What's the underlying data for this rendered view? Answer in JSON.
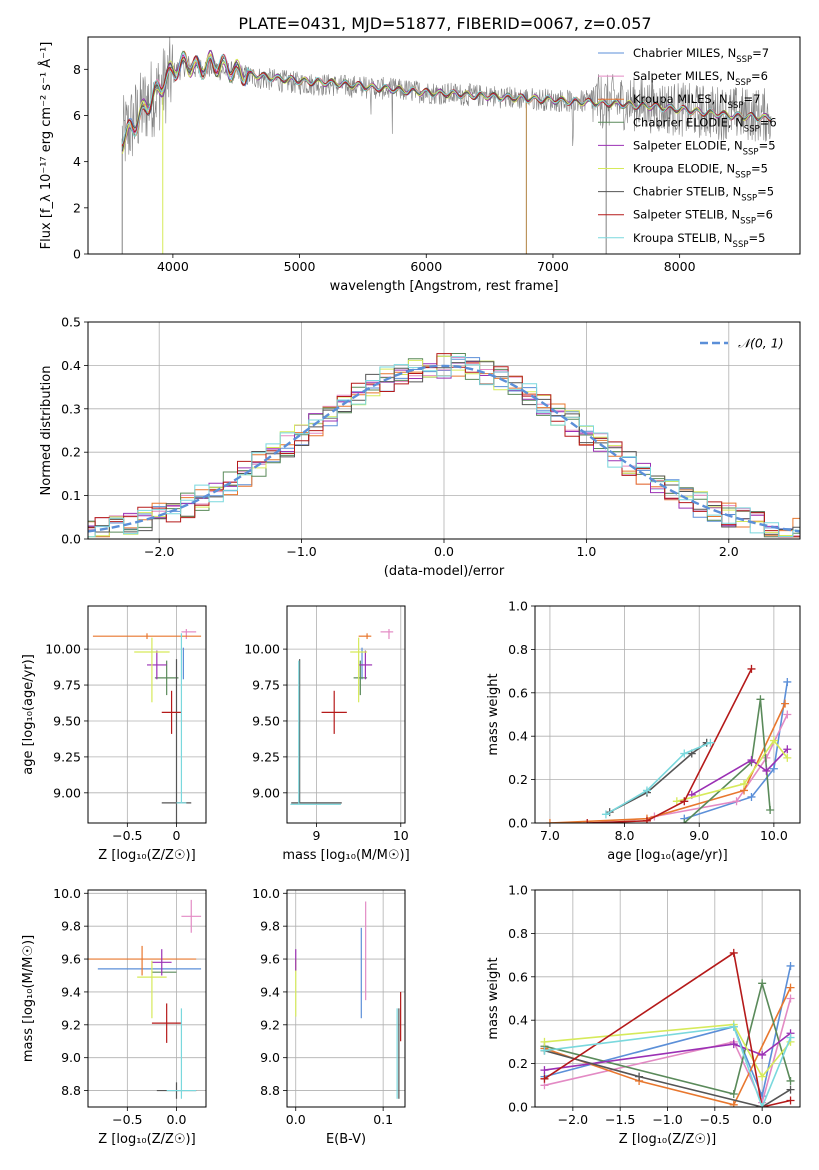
{
  "figure": {
    "suptitle": "PLATE=0431, MJD=51877, FIBERID=0067, z=0.057"
  },
  "colors": {
    "Chabrier MILES": "#5b8fd8",
    "Salpeter MILES": "#e38ac4",
    "Kroupa MILES": "#e8772e",
    "Chabrier ELODIE": "#5a8a5a",
    "Salpeter ELODIE": "#9b30b4",
    "Kroupa ELODIE": "#d6ea5a",
    "Chabrier STELIB": "#555555",
    "Salpeter STELIB": "#b51a1a",
    "Kroupa STELIB": "#7ad8dd",
    "data": "#808080",
    "normal": "#5b8fd8"
  },
  "chart_data": [
    {
      "id": "spectrum",
      "type": "line",
      "title": "",
      "xlabel": "wavelength [Angstrom, rest frame]",
      "ylabel": "Flux [f_λ 10⁻¹⁷ erg cm⁻² s⁻¹ Å⁻¹]",
      "xlim": [
        3330,
        8950
      ],
      "ylim": [
        0,
        9.4
      ],
      "xticks": [
        4000,
        5000,
        6000,
        7000,
        8000
      ],
      "yticks": [
        0,
        2,
        4,
        6,
        8
      ],
      "grid": false,
      "legend_position": "upper right",
      "legend": [
        {
          "name": "Chabrier MILES",
          "sub": "SSP",
          "n": "7"
        },
        {
          "name": "Salpeter MILES",
          "sub": "SSP",
          "n": "6"
        },
        {
          "name": "Kroupa MILES",
          "sub": "SSP",
          "n": "7"
        },
        {
          "name": "Chabrier ELODIE",
          "sub": "SSP",
          "n": "6"
        },
        {
          "name": "Salpeter ELODIE",
          "sub": "SSP",
          "n": "5"
        },
        {
          "name": "Kroupa ELODIE",
          "sub": "SSP",
          "n": "5"
        },
        {
          "name": "Chabrier STELIB",
          "sub": "SSP",
          "n": "5"
        },
        {
          "name": "Salpeter STELIB",
          "sub": "SSP",
          "n": "6"
        },
        {
          "name": "Kroupa STELIB",
          "sub": "SSP",
          "n": "5"
        }
      ],
      "data_envelope": {
        "x": [
          3600,
          3700,
          3800,
          3900,
          4000,
          4100,
          4200,
          4300,
          4500,
          4700,
          5000,
          5300,
          5600,
          6000,
          6300,
          6600,
          6900,
          7200,
          7500,
          7800,
          8100,
          8400,
          8700
        ],
        "y": [
          5.0,
          5.8,
          6.6,
          7.1,
          7.8,
          8.2,
          8.0,
          8.1,
          7.8,
          7.6,
          7.4,
          7.3,
          7.2,
          7.0,
          6.9,
          6.8,
          6.7,
          6.6,
          6.6,
          6.4,
          6.2,
          6.1,
          6.0
        ]
      },
      "model_envelope": {
        "x": [
          3600,
          3700,
          3800,
          3900,
          4000,
          4100,
          4200,
          4300,
          4500,
          4700,
          5000,
          5300,
          5600,
          6000,
          6300,
          6600,
          6900,
          7200,
          7500,
          7800,
          8100,
          8400,
          8700
        ],
        "y": [
          4.9,
          5.6,
          6.5,
          7.2,
          8.0,
          8.3,
          8.0,
          8.3,
          7.9,
          7.7,
          7.5,
          7.4,
          7.2,
          7.0,
          6.9,
          6.8,
          6.7,
          6.6,
          6.5,
          6.4,
          6.2,
          6.0,
          5.9
        ]
      }
    },
    {
      "id": "residuals",
      "type": "line",
      "xlabel": "(data-model)/error",
      "ylabel": "Normed distribution",
      "xlim": [
        -2.5,
        2.5
      ],
      "ylim": [
        0,
        0.5
      ],
      "xticks": [
        -2,
        -1,
        0,
        1,
        2
      ],
      "yticks": [
        0.0,
        0.1,
        0.2,
        0.3,
        0.4,
        0.5
      ],
      "grid": true,
      "legend_position": "upper right",
      "legend_label": "𝒩(0, 1)"
    },
    {
      "id": "age_vs_Z",
      "type": "scatter",
      "xlabel": "Z [log₁₀(Z/Z☉)]",
      "ylabel": "age  [log₁₀(age/yr)]",
      "xlim": [
        -0.9,
        0.3
      ],
      "ylim": [
        8.79,
        10.3
      ],
      "xticks": [
        -0.5,
        0.0
      ],
      "yticks": [
        9.0,
        9.25,
        9.5,
        9.75,
        10.0
      ],
      "grid": true,
      "points": [
        {
          "model": "Chabrier MILES",
          "x": 0.07,
          "y": 9.88,
          "xerr": [
            0.0,
            0.0
          ],
          "yerr": [
            0.09,
            0.13
          ]
        },
        {
          "model": "Salpeter MILES",
          "x": 0.1,
          "y": 10.12,
          "xerr": [
            0.05,
            0.1
          ],
          "yerr": [
            0.05,
            0.02
          ]
        },
        {
          "model": "Kroupa MILES",
          "x": -0.3,
          "y": 10.09,
          "xerr": [
            0.55,
            0.55
          ],
          "yerr": [
            0.02,
            0.02
          ]
        },
        {
          "model": "Chabrier ELODIE",
          "x": -0.1,
          "y": 9.8,
          "xerr": [
            0.12,
            0.12
          ],
          "yerr": [
            0.12,
            0.12
          ]
        },
        {
          "model": "Salpeter ELODIE",
          "x": -0.2,
          "y": 9.89,
          "xerr": [
            0.1,
            0.1
          ],
          "yerr": [
            0.1,
            0.1
          ]
        },
        {
          "model": "Kroupa ELODIE",
          "x": -0.25,
          "y": 9.98,
          "xerr": [
            0.18,
            0.18
          ],
          "yerr": [
            0.35,
            0.1
          ]
        },
        {
          "model": "Chabrier STELIB",
          "x": 0.0,
          "y": 8.93,
          "xerr": [
            0.15,
            0.15
          ],
          "yerr": [
            1.0,
            1.0
          ]
        },
        {
          "model": "Salpeter STELIB",
          "x": -0.05,
          "y": 9.56,
          "xerr": [
            0.1,
            0.1
          ],
          "yerr": [
            0.15,
            0.15
          ]
        },
        {
          "model": "Kroupa STELIB",
          "x": 0.05,
          "y": 8.93,
          "xerr": [
            0.05,
            0.05
          ],
          "yerr": [
            0.0,
            1.18
          ]
        }
      ]
    },
    {
      "id": "age_vs_mass",
      "type": "scatter",
      "xlabel": "mass [log₁₀(M/M☉)]",
      "ylabel": "",
      "xlim": [
        8.65,
        10.05
      ],
      "ylim": [
        8.79,
        10.3
      ],
      "xticks": [
        9,
        10
      ],
      "yticks": [
        9.0,
        9.25,
        9.5,
        9.75,
        10.0
      ],
      "grid": true,
      "points": [
        {
          "model": "Chabrier MILES",
          "x": 9.54,
          "y": 9.88,
          "xerr": [
            0.0,
            0.0
          ],
          "yerr": [
            0.09,
            0.13
          ]
        },
        {
          "model": "Salpeter MILES",
          "x": 9.86,
          "y": 10.12,
          "xerr": [
            0.1,
            0.05
          ],
          "yerr": [
            0.05,
            0.02
          ]
        },
        {
          "model": "Kroupa MILES",
          "x": 9.6,
          "y": 10.09,
          "xerr": [
            0.1,
            0.05
          ],
          "yerr": [
            0.02,
            0.02
          ]
        },
        {
          "model": "Chabrier ELODIE",
          "x": 9.52,
          "y": 9.8,
          "xerr": [
            0.08,
            0.08
          ],
          "yerr": [
            0.12,
            0.12
          ]
        },
        {
          "model": "Salpeter ELODIE",
          "x": 9.58,
          "y": 9.89,
          "xerr": [
            0.08,
            0.08
          ],
          "yerr": [
            0.1,
            0.1
          ]
        },
        {
          "model": "Kroupa ELODIE",
          "x": 9.5,
          "y": 9.98,
          "xerr": [
            0.1,
            0.1
          ],
          "yerr": [
            0.35,
            0.1
          ]
        },
        {
          "model": "Chabrier STELIB",
          "x": 8.8,
          "y": 8.93,
          "xerr": [
            0.1,
            0.5
          ],
          "yerr": [
            0.0,
            1.0
          ]
        },
        {
          "model": "Salpeter STELIB",
          "x": 9.21,
          "y": 9.56,
          "xerr": [
            0.15,
            0.15
          ],
          "yerr": [
            0.15,
            0.15
          ]
        },
        {
          "model": "Kroupa STELIB",
          "x": 8.79,
          "y": 8.92,
          "xerr": [
            0.1,
            0.5
          ],
          "yerr": [
            0.0,
            1.0
          ]
        }
      ]
    },
    {
      "id": "weight_vs_age",
      "type": "line",
      "xlabel": "age  [log₁₀(age/yr)]",
      "ylabel": "mass weight",
      "xlim": [
        6.8,
        10.35
      ],
      "ylim": [
        0,
        1.0
      ],
      "xticks": [
        7,
        8,
        9,
        10
      ],
      "yticks": [
        0.0,
        0.2,
        0.4,
        0.6,
        0.8,
        1.0
      ],
      "grid": true,
      "series": [
        {
          "model": "Chabrier MILES",
          "x": [
            8.8,
            9.7,
            10.0,
            10.18
          ],
          "y": [
            0.02,
            0.12,
            0.25,
            0.65
          ]
        },
        {
          "model": "Salpeter MILES",
          "x": [
            8.4,
            9.5,
            9.9,
            10.18
          ],
          "y": [
            0.03,
            0.1,
            0.3,
            0.5
          ]
        },
        {
          "model": "Kroupa MILES",
          "x": [
            7.0,
            8.3,
            9.6,
            10.15
          ],
          "y": [
            0.0,
            0.02,
            0.15,
            0.55
          ]
        },
        {
          "model": "Chabrier ELODIE",
          "x": [
            8.8,
            9.7,
            9.82,
            9.95
          ],
          "y": [
            0.0,
            0.28,
            0.57,
            0.06
          ]
        },
        {
          "model": "Salpeter ELODIE",
          "x": [
            8.9,
            9.7,
            9.9,
            10.18
          ],
          "y": [
            0.13,
            0.29,
            0.24,
            0.34
          ]
        },
        {
          "model": "Kroupa ELODIE",
          "x": [
            8.7,
            9.6,
            10.0,
            10.18
          ],
          "y": [
            0.1,
            0.18,
            0.38,
            0.3
          ]
        },
        {
          "model": "Chabrier STELIB",
          "x": [
            7.8,
            8.3,
            8.9,
            9.1
          ],
          "y": [
            0.05,
            0.14,
            0.32,
            0.37
          ]
        },
        {
          "model": "Salpeter STELIB",
          "x": [
            7.5,
            8.3,
            8.8,
            9.7
          ],
          "y": [
            0.0,
            0.01,
            0.1,
            0.71
          ]
        },
        {
          "model": "Kroupa STELIB",
          "x": [
            7.75,
            8.3,
            8.8,
            9.15
          ],
          "y": [
            0.04,
            0.15,
            0.32,
            0.37
          ]
        }
      ]
    },
    {
      "id": "mass_vs_Z",
      "type": "scatter",
      "xlabel": "Z [log₁₀(Z/Z☉)]",
      "ylabel": "mass [log₁₀(M/M☉)]",
      "xlim": [
        -0.9,
        0.3
      ],
      "ylim": [
        8.7,
        10.02
      ],
      "xticks": [
        -0.5,
        0.0
      ],
      "yticks": [
        8.8,
        9.0,
        9.2,
        9.4,
        9.6,
        9.8,
        10.0
      ],
      "grid": true,
      "points": [
        {
          "model": "Chabrier MILES",
          "x": -0.3,
          "y": 9.54,
          "xerr": [
            0.5,
            0.55
          ],
          "yerr": [
            0.0,
            0.0
          ]
        },
        {
          "model": "Salpeter MILES",
          "x": 0.15,
          "y": 9.86,
          "xerr": [
            0.1,
            0.1
          ],
          "yerr": [
            0.1,
            0.1
          ]
        },
        {
          "model": "Kroupa MILES",
          "x": -0.35,
          "y": 9.6,
          "xerr": [
            0.55,
            0.55
          ],
          "yerr": [
            0.1,
            0.08
          ]
        },
        {
          "model": "Chabrier ELODIE",
          "x": -0.1,
          "y": 9.52,
          "xerr": [
            0.15,
            0.1
          ],
          "yerr": [
            0.0,
            0.0
          ]
        },
        {
          "model": "Salpeter ELODIE",
          "x": -0.15,
          "y": 9.58,
          "xerr": [
            0.1,
            0.1
          ],
          "yerr": [
            0.08,
            0.08
          ]
        },
        {
          "model": "Kroupa ELODIE",
          "x": -0.25,
          "y": 9.49,
          "xerr": [
            0.15,
            0.15
          ],
          "yerr": [
            0.25,
            0.1
          ]
        },
        {
          "model": "Chabrier STELIB",
          "x": 0.0,
          "y": 8.8,
          "xerr": [
            0.2,
            0.2
          ],
          "yerr": [
            0.05,
            0.05
          ]
        },
        {
          "model": "Salpeter STELIB",
          "x": -0.1,
          "y": 9.21,
          "xerr": [
            0.15,
            0.15
          ],
          "yerr": [
            0.12,
            0.12
          ]
        },
        {
          "model": "Kroupa STELIB",
          "x": 0.05,
          "y": 8.8,
          "xerr": [
            0.15,
            0.15
          ],
          "yerr": [
            0.05,
            0.5
          ]
        }
      ]
    },
    {
      "id": "mass_vs_ebv",
      "type": "scatter",
      "xlabel": "E(B-V)",
      "ylabel": "",
      "xlim": [
        -0.01,
        0.125
      ],
      "ylim": [
        8.7,
        10.02
      ],
      "xticks": [
        0.0,
        0.1
      ],
      "yticks": [
        8.8,
        9.0,
        9.2,
        9.4,
        9.6,
        9.8,
        10.0
      ],
      "grid": true,
      "points": [
        {
          "model": "Chabrier MILES",
          "x": 0.075,
          "y": 9.54,
          "xerr": [
            0,
            0
          ],
          "yerr": [
            0.3,
            0.25
          ]
        },
        {
          "model": "Salpeter MILES",
          "x": 0.08,
          "y": 9.65,
          "xerr": [
            0,
            0
          ],
          "yerr": [
            0.3,
            0.3
          ]
        },
        {
          "model": "Kroupa ELODIE",
          "x": 0.0,
          "y": 9.5,
          "xerr": [
            0,
            0
          ],
          "yerr": [
            0.25,
            0.1
          ]
        },
        {
          "model": "Salpeter ELODIE",
          "x": 0.0,
          "y": 9.58,
          "xerr": [
            0,
            0
          ],
          "yerr": [
            0.05,
            0.08
          ]
        },
        {
          "model": "Chabrier STELIB",
          "x": 0.118,
          "y": 8.8,
          "xerr": [
            0,
            0
          ],
          "yerr": [
            0.05,
            0.5
          ]
        },
        {
          "model": "Salpeter STELIB",
          "x": 0.12,
          "y": 9.25,
          "xerr": [
            0,
            0
          ],
          "yerr": [
            0.15,
            0.15
          ]
        },
        {
          "model": "Kroupa STELIB",
          "x": 0.116,
          "y": 8.8,
          "xerr": [
            0,
            0
          ],
          "yerr": [
            0.05,
            0.5
          ]
        }
      ]
    },
    {
      "id": "weight_vs_Z",
      "type": "line",
      "xlabel": "Z [log₁₀(Z/Z☉)]",
      "ylabel": "mass weight",
      "xlim": [
        -2.4,
        0.4
      ],
      "ylim": [
        0,
        1.0
      ],
      "xticks": [
        -2.0,
        -1.5,
        -1.0,
        -0.5,
        0.0
      ],
      "yticks": [
        0.0,
        0.2,
        0.4,
        0.6,
        0.8,
        1.0
      ],
      "grid": true,
      "series": [
        {
          "model": "Chabrier MILES",
          "x": [
            -2.3,
            -0.3,
            0.0,
            0.3
          ],
          "y": [
            0.14,
            0.37,
            0.05,
            0.65
          ]
        },
        {
          "model": "Salpeter MILES",
          "x": [
            -2.3,
            -0.3,
            0.0,
            0.3
          ],
          "y": [
            0.1,
            0.3,
            0.02,
            0.5
          ]
        },
        {
          "model": "Kroupa MILES",
          "x": [
            -2.3,
            -1.3,
            -0.3,
            0.3
          ],
          "y": [
            0.27,
            0.12,
            0.01,
            0.55
          ]
        },
        {
          "model": "Chabrier ELODIE",
          "x": [
            -2.3,
            -0.3,
            0.0,
            0.3
          ],
          "y": [
            0.28,
            0.06,
            0.57,
            0.12
          ]
        },
        {
          "model": "Salpeter ELODIE",
          "x": [
            -2.3,
            -0.3,
            0.0,
            0.3
          ],
          "y": [
            0.17,
            0.29,
            0.24,
            0.34
          ]
        },
        {
          "model": "Kroupa ELODIE",
          "x": [
            -2.3,
            -0.3,
            0.0,
            0.3
          ],
          "y": [
            0.3,
            0.38,
            0.14,
            0.3
          ]
        },
        {
          "model": "Chabrier STELIB",
          "x": [
            -2.3,
            -1.3,
            0.0,
            0.3
          ],
          "y": [
            0.26,
            0.14,
            0.0,
            0.08
          ]
        },
        {
          "model": "Salpeter STELIB",
          "x": [
            -2.3,
            -0.3,
            0.0,
            0.3
          ],
          "y": [
            0.13,
            0.71,
            0.0,
            0.03
          ]
        },
        {
          "model": "Kroupa STELIB",
          "x": [
            -2.3,
            -0.3,
            0.0,
            0.3
          ],
          "y": [
            0.26,
            0.37,
            0.0,
            0.32
          ]
        }
      ]
    }
  ]
}
